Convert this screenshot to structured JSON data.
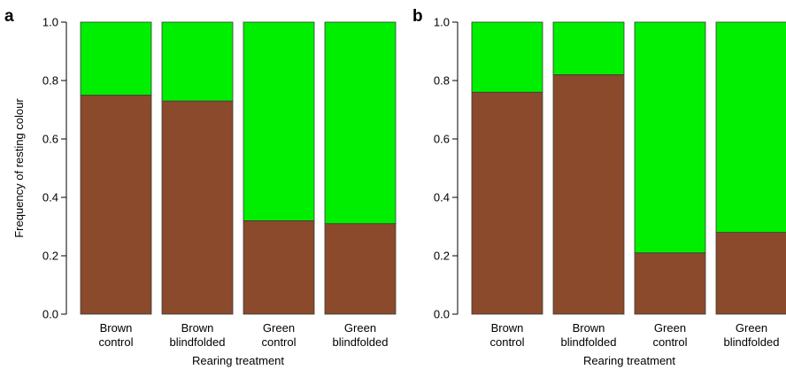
{
  "chart_data": [
    {
      "type": "bar",
      "stacked": true,
      "panel_label": "a",
      "categories": [
        "Brown\ncontrol",
        "Brown\nblindfolded",
        "Green\ncontrol",
        "Green\nblindfolded"
      ],
      "series": [
        {
          "name": "",
          "color": "#8B4A2B",
          "values": [
            0.75,
            0.73,
            0.32,
            0.31
          ]
        },
        {
          "name": "",
          "color": "#00EE00",
          "values": [
            0.25,
            0.27,
            0.68,
            0.69
          ]
        }
      ],
      "xlabel": "Rearing treatment",
      "ylabel": "Frequency of resting colour",
      "ylim": [
        0,
        1
      ],
      "yticks": [
        "0.0",
        "0.2",
        "0.4",
        "0.6",
        "0.8",
        "1.0"
      ],
      "grid": false
    },
    {
      "type": "bar",
      "stacked": true,
      "panel_label": "b",
      "categories": [
        "Brown\ncontrol",
        "Brown\nblindfolded",
        "Green\ncontrol",
        "Green\nblindfolded"
      ],
      "series": [
        {
          "name": "",
          "color": "#8B4A2B",
          "values": [
            0.76,
            0.82,
            0.21,
            0.28
          ]
        },
        {
          "name": "",
          "color": "#00EE00",
          "values": [
            0.24,
            0.18,
            0.79,
            0.72
          ]
        }
      ],
      "xlabel": "Rearing treatment",
      "ylabel": "",
      "ylim": [
        0,
        1
      ],
      "yticks": [
        "0.0",
        "0.2",
        "0.4",
        "0.6",
        "0.8",
        "1.0"
      ],
      "grid": false
    }
  ]
}
